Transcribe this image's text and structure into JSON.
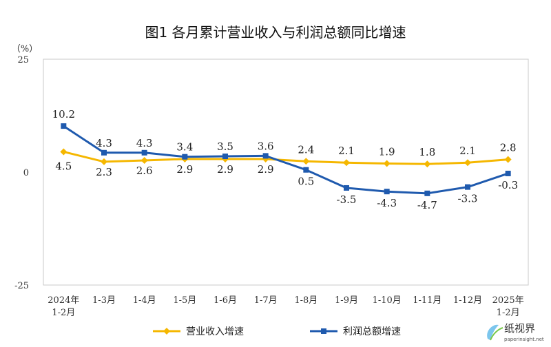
{
  "title": "图1  各月累计营业收入与利润总额同比增速",
  "chart_data": {
    "type": "line",
    "title": "图1  各月累计营业收入与利润总额同比增速",
    "unit_label": "（%）",
    "categories": [
      [
        "2024年",
        "1-2月"
      ],
      [
        "1-3月"
      ],
      [
        "1-4月"
      ],
      [
        "1-5月"
      ],
      [
        "1-6月"
      ],
      [
        "1-7月"
      ],
      [
        "1-8月"
      ],
      [
        "1-9月"
      ],
      [
        "1-10月"
      ],
      [
        "1-11月"
      ],
      [
        "1-12月"
      ],
      [
        "2025年",
        "1-2月"
      ]
    ],
    "ylim": [
      -25,
      25
    ],
    "yticks": [
      25,
      0,
      -25
    ],
    "grid": false,
    "legend_position": "bottom",
    "series": [
      {
        "name": "营业收入增速",
        "color": "#F5B700",
        "marker": "diamond",
        "values": [
          4.5,
          2.3,
          2.6,
          2.9,
          2.9,
          2.9,
          2.4,
          2.1,
          1.9,
          1.8,
          2.1,
          2.8
        ],
        "labels": [
          "4.5",
          "2.3",
          "2.6",
          "2.9",
          "2.9",
          "2.9",
          "2.4",
          "2.1",
          "1.9",
          "1.8",
          "2.1",
          "2.8"
        ]
      },
      {
        "name": "利润总额增速",
        "color": "#1F5AAE",
        "marker": "square",
        "values": [
          10.2,
          4.3,
          4.3,
          3.4,
          3.5,
          3.6,
          0.5,
          -3.5,
          -4.3,
          -4.7,
          -3.3,
          -0.3
        ],
        "labels": [
          "10.2",
          "4.3",
          "4.3",
          "3.4",
          "3.5",
          "3.6",
          "0.5",
          "-3.5",
          "-4.3",
          "-4.7",
          "-3.3",
          "-0.3"
        ]
      }
    ]
  },
  "watermark": {
    "logo_text": "纸视界",
    "url_text": "paperinsight.net"
  }
}
